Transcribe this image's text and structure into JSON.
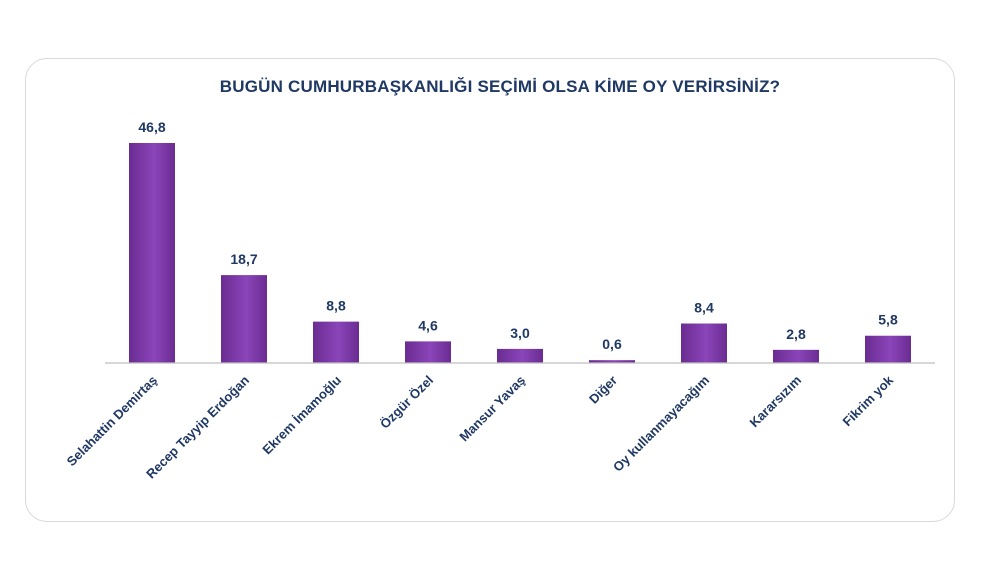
{
  "chart_data": {
    "type": "bar",
    "title": "BUGÜN CUMHURBAŞKANLIĞI SEÇİMİ OLSA KİME OY VERİRSİNİZ?",
    "categories": [
      "Selahattin Demirtaş",
      "Recep Tayyip Erdoğan",
      "Ekrem İmamoğlu",
      "Özgür Özel",
      "Mansur Yavaş",
      "Diğer",
      "Oy kullanmayacağım",
      "Kararsızım",
      "Fikrim yok"
    ],
    "values": [
      46.8,
      18.7,
      8.8,
      4.6,
      3.0,
      0.6,
      8.4,
      2.8,
      5.8
    ],
    "value_labels": [
      "46,8",
      "18,7",
      "8,8",
      "4,6",
      "3,0",
      "0,6",
      "8,4",
      "2,8",
      "5,8"
    ],
    "xlabel": "",
    "ylabel": "",
    "ylim": [
      0,
      46.8
    ],
    "grid": false,
    "legend": "none",
    "bar_color": "#6a2c91",
    "bar_color_light": "#8a45b8",
    "text_color": "#1f3864"
  }
}
